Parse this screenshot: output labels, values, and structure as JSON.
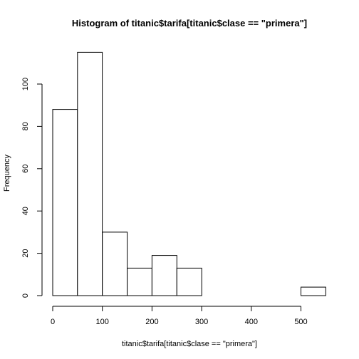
{
  "chart_data": {
    "type": "bar",
    "title": "Histogram of titanic$tarifa[titanic$clase == \"primera\"]",
    "xlabel": "titanic$tarifa[titanic$clase == \"primera\"]",
    "ylabel": "Frequency",
    "bins": [
      {
        "from": 0,
        "to": 50,
        "count": 88
      },
      {
        "from": 50,
        "to": 100,
        "count": 115
      },
      {
        "from": 100,
        "to": 150,
        "count": 30
      },
      {
        "from": 150,
        "to": 200,
        "count": 13
      },
      {
        "from": 200,
        "to": 250,
        "count": 19
      },
      {
        "from": 250,
        "to": 300,
        "count": 13
      },
      {
        "from": 300,
        "to": 350,
        "count": 0
      },
      {
        "from": 350,
        "to": 400,
        "count": 0
      },
      {
        "from": 400,
        "to": 450,
        "count": 0
      },
      {
        "from": 450,
        "to": 500,
        "count": 0
      },
      {
        "from": 500,
        "to": 550,
        "count": 4
      }
    ],
    "xlim": [
      0,
      550
    ],
    "ylim": [
      0,
      115
    ],
    "x_ticks": [
      0,
      100,
      200,
      300,
      400,
      500
    ],
    "y_ticks": [
      0,
      20,
      40,
      60,
      80,
      100
    ],
    "grid": false
  }
}
